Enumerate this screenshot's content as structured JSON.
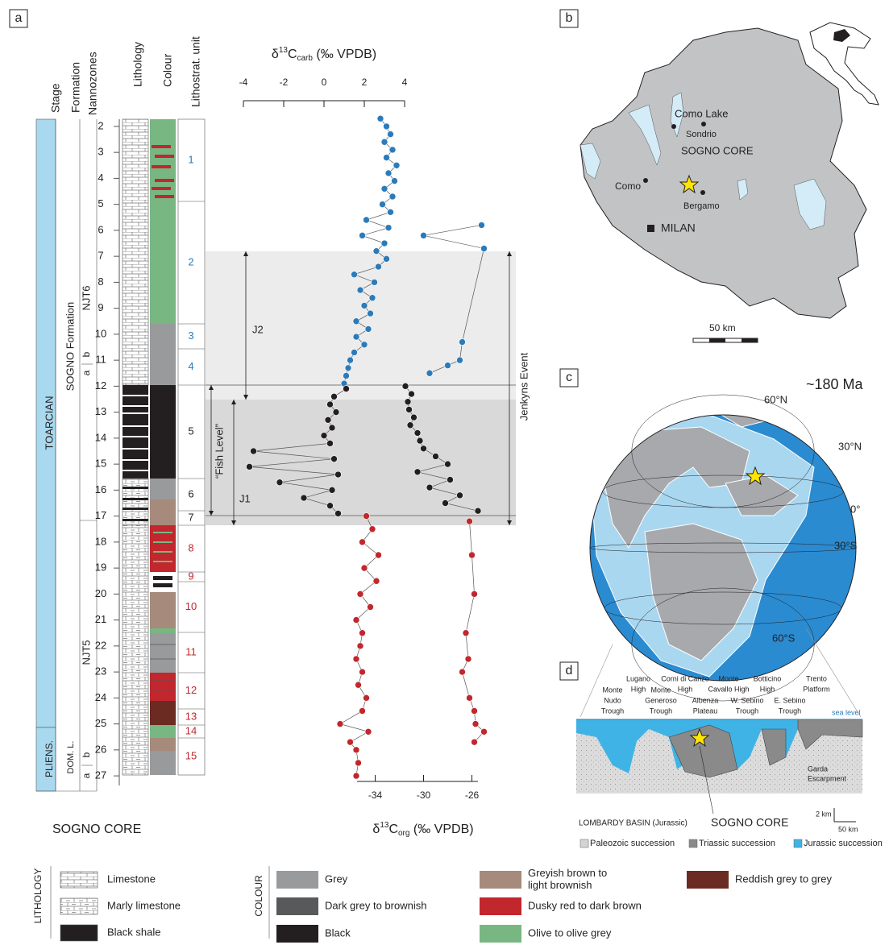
{
  "chart_data": {
    "type": "line",
    "xlabel": {
      "prefix": "δ",
      "sup": "13",
      "main": "C",
      "sub": "carb",
      "suffix": " (‰ VPDB)"
    },
    "x2label": {
      "prefix": "δ",
      "sup": "13",
      "main": "C",
      "sub": "org",
      "suffix": " (‰ VPDB)"
    },
    "xlim": [
      -4,
      4
    ],
    "xticks": [
      -4,
      -2,
      0,
      2,
      4
    ],
    "x2lim": [
      -35.5,
      -25.5
    ],
    "x2ticks": [
      -34,
      -30,
      -26
    ],
    "ylim": [
      1.6,
      27.4
    ],
    "yticks": [
      2,
      3,
      4,
      5,
      6,
      7,
      8,
      9,
      10,
      11,
      12,
      13,
      14,
      15,
      16,
      17,
      18,
      19,
      20,
      21,
      22,
      23,
      24,
      25,
      26,
      27
    ],
    "y_inverted": true,
    "series": [
      {
        "color": "#2b7bba",
        "depth": [
          1.7,
          2.0,
          2.3,
          2.6,
          2.9,
          3.2,
          3.5,
          3.8,
          4.1,
          4.4,
          4.7,
          5.0,
          5.3,
          5.6,
          5.9,
          6.2,
          6.5,
          6.8,
          7.1,
          7.4,
          7.7,
          8.0,
          8.3,
          8.6,
          8.9,
          9.2,
          9.5,
          9.8,
          10.1,
          10.4,
          10.7,
          11.0,
          11.3,
          11.6,
          11.9
        ],
        "values": [
          2.8,
          3.1,
          3.3,
          3.0,
          3.4,
          3.1,
          3.6,
          3.2,
          3.5,
          3.0,
          3.4,
          2.9,
          3.3,
          2.1,
          3.2,
          1.9,
          3.0,
          2.6,
          3.1,
          2.7,
          1.5,
          2.5,
          1.8,
          2.4,
          2.0,
          2.3,
          1.6,
          2.2,
          1.6,
          2.0,
          1.5,
          1.3,
          1.2,
          1.1,
          1.0
        ]
      },
      {
        "color": "#231f20",
        "depth": [
          12.1,
          12.4,
          12.7,
          13.0,
          13.3,
          13.6,
          13.9,
          14.2,
          14.5,
          14.8,
          15.1,
          15.4,
          15.7,
          16.0,
          16.3,
          16.6,
          16.9
        ],
        "values": [
          1.1,
          0.5,
          0.3,
          0.6,
          0.2,
          0.4,
          0.0,
          0.3,
          -3.5,
          0.5,
          -3.7,
          0.7,
          -2.2,
          0.4,
          -1.0,
          0.3,
          0.7
        ]
      },
      {
        "color": "#c1272d",
        "depth": [
          17.0,
          17.5,
          18.0,
          18.5,
          19.0,
          19.5,
          20.0,
          20.5,
          21.0,
          21.5,
          22.0,
          22.5,
          23.0,
          23.5,
          24.0,
          24.5,
          25.0,
          25.3,
          25.7,
          26.0,
          26.5,
          27.0
        ],
        "values": [
          2.1,
          2.4,
          1.9,
          2.7,
          2.0,
          2.6,
          1.8,
          2.3,
          1.6,
          1.9,
          1.8,
          1.6,
          1.9,
          1.7,
          2.1,
          1.9,
          0.8,
          2.2,
          1.3,
          1.6,
          1.7,
          1.6
        ]
      },
      {
        "color": "#2b7bba",
        "axis": "x2",
        "depth": [
          5.8,
          6.2,
          6.7,
          10.3,
          11.0,
          11.2,
          11.5
        ],
        "values": [
          -25.2,
          -30.0,
          -25.0,
          -26.8,
          -27.0,
          -28.0,
          -29.5
        ]
      },
      {
        "color": "#231f20",
        "axis": "x2",
        "depth": [
          12.0,
          12.3,
          12.6,
          12.9,
          13.2,
          13.5,
          13.8,
          14.1,
          14.4,
          14.7,
          15.0,
          15.3,
          15.6,
          15.9,
          16.2,
          16.5,
          16.8
        ],
        "values": [
          -31.5,
          -31.0,
          -31.3,
          -31.2,
          -30.8,
          -31.1,
          -30.5,
          -30.3,
          -30.0,
          -29.0,
          -28.0,
          -30.5,
          -27.8,
          -29.5,
          -27.0,
          -28.2,
          -25.5
        ]
      },
      {
        "color": "#c1272d",
        "axis": "x2",
        "depth": [
          17.2,
          18.5,
          20.0,
          21.5,
          22.5,
          23.0,
          24.0,
          24.5,
          25.0,
          25.3,
          25.7
        ],
        "values": [
          -26.2,
          -26.0,
          -25.8,
          -26.5,
          -26.3,
          -26.8,
          -26.2,
          -25.8,
          -25.7,
          -25.0,
          -25.8
        ]
      }
    ]
  },
  "figure": {
    "panel_labels": [
      "a",
      "b",
      "c",
      "d"
    ],
    "column_headers": [
      "Stage",
      "Formation",
      "Nannozones",
      "Lithology",
      "Colour",
      "Lithostrat. unit"
    ],
    "stages": [
      "TOARCIAN",
      "PLIENS."
    ],
    "formations": [
      "SOGNO Formation",
      "DOM. L."
    ],
    "nannozones": [
      "NJT6",
      "a",
      "b",
      "NJT5",
      "a",
      "b"
    ],
    "units": [
      {
        "label": "1",
        "color": "#2b7bba"
      },
      {
        "label": "2",
        "color": "#2b7bba"
      },
      {
        "label": "3",
        "color": "#2b7bba"
      },
      {
        "label": "4",
        "color": "#2b7bba"
      },
      {
        "label": "5",
        "color": "#231f20"
      },
      {
        "label": "6",
        "color": "#231f20"
      },
      {
        "label": "7",
        "color": "#231f20"
      },
      {
        "label": "8",
        "color": "#c1272d"
      },
      {
        "label": "9",
        "color": "#c1272d"
      },
      {
        "label": "10",
        "color": "#c1272d"
      },
      {
        "label": "11",
        "color": "#c1272d"
      },
      {
        "label": "12",
        "color": "#c1272d"
      },
      {
        "label": "13",
        "color": "#c1272d"
      },
      {
        "label": "14",
        "color": "#c1272d"
      },
      {
        "label": "15",
        "color": "#c1272d"
      }
    ],
    "events": {
      "j2": "J2",
      "j1": "J1",
      "fish_level": "“Fish Level”",
      "jenkyns": "Jenkyns Event"
    },
    "core_title": "SOGNO CORE",
    "legend": {
      "lithology_title": "LITHOLOGY",
      "lithology": [
        "Limestone",
        "Marly limestone",
        "Black shale"
      ],
      "colour_title": "COLOUR",
      "colours": [
        {
          "lines": [
            "Grey"
          ],
          "color": "#999a9c"
        },
        {
          "lines": [
            "Dark grey to brownish"
          ],
          "color": "#58595b"
        },
        {
          "lines": [
            "Black"
          ],
          "color": "#231f20"
        },
        {
          "lines": [
            "Greyish brown to",
            "light brownish"
          ],
          "color": "#a68a7b"
        },
        {
          "lines": [
            "Dusky red to dark brown"
          ],
          "color": "#c1272d"
        },
        {
          "lines": [
            "Olive to olive grey"
          ],
          "color": "#78b682"
        },
        {
          "lines": [
            "Reddish grey to grey"
          ],
          "color": "#6b2a22"
        }
      ]
    },
    "map": {
      "labels": [
        "Como Lake",
        "Sondrio",
        "SOGNO CORE",
        "Como",
        "Bergamo",
        "MILAN"
      ],
      "scale": "50 km"
    },
    "globe": {
      "age": "~180 Ma",
      "latitudes": [
        "60°N",
        "30°N",
        "0°",
        "30°S",
        "60°S"
      ]
    },
    "section": {
      "places": [
        [
          "Monte",
          "Nudo",
          "Trough"
        ],
        [
          "Lugano",
          "High"
        ],
        [
          "Monte",
          "Generoso",
          "Trough"
        ],
        [
          "Corni di Canzo",
          "High"
        ],
        [
          "Albenza",
          "Plateau"
        ],
        [
          "Monte",
          "Cavallo High"
        ],
        [
          "W. Sebino",
          "Trough"
        ],
        [
          "Botticino",
          "High"
        ],
        [
          "E. Sebino",
          "Trough"
        ],
        [
          "Trento",
          "Platform"
        ]
      ],
      "sea_level": "sea level",
      "escarpment": [
        "Garda",
        "Escarpment"
      ],
      "vertical_scale": "2 km",
      "horizontal_scale": "50 km",
      "basin": "LOMBARDY BASIN (Jurassic)",
      "core": "SOGNO CORE",
      "legend": [
        {
          "label": "Paleozoic succession",
          "color": "#d4d4d4"
        },
        {
          "label": "Triassic succession",
          "color": "#8a8a8a"
        },
        {
          "label": "Jurassic succession",
          "color": "#3fb3e6"
        }
      ]
    }
  }
}
